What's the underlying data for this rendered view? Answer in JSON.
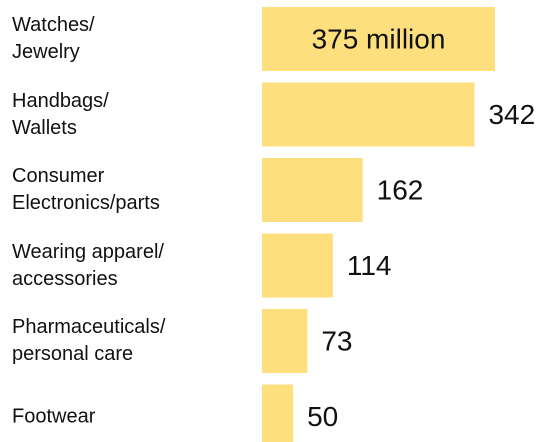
{
  "chart_data": {
    "type": "bar",
    "orientation": "horizontal",
    "categories": [
      "Watches/\nJewelry",
      "Handbags/\nWallets",
      "Consumer\nElectronics/parts",
      "Wearing apparel/\naccessories",
      "Pharmaceuticals/\npersonal care",
      "Footwear"
    ],
    "values": [
      375,
      342,
      162,
      114,
      73,
      50
    ],
    "value_labels": [
      "375 million",
      "342",
      "162",
      "114",
      "73",
      "50"
    ],
    "color": "#fddf7e"
  }
}
